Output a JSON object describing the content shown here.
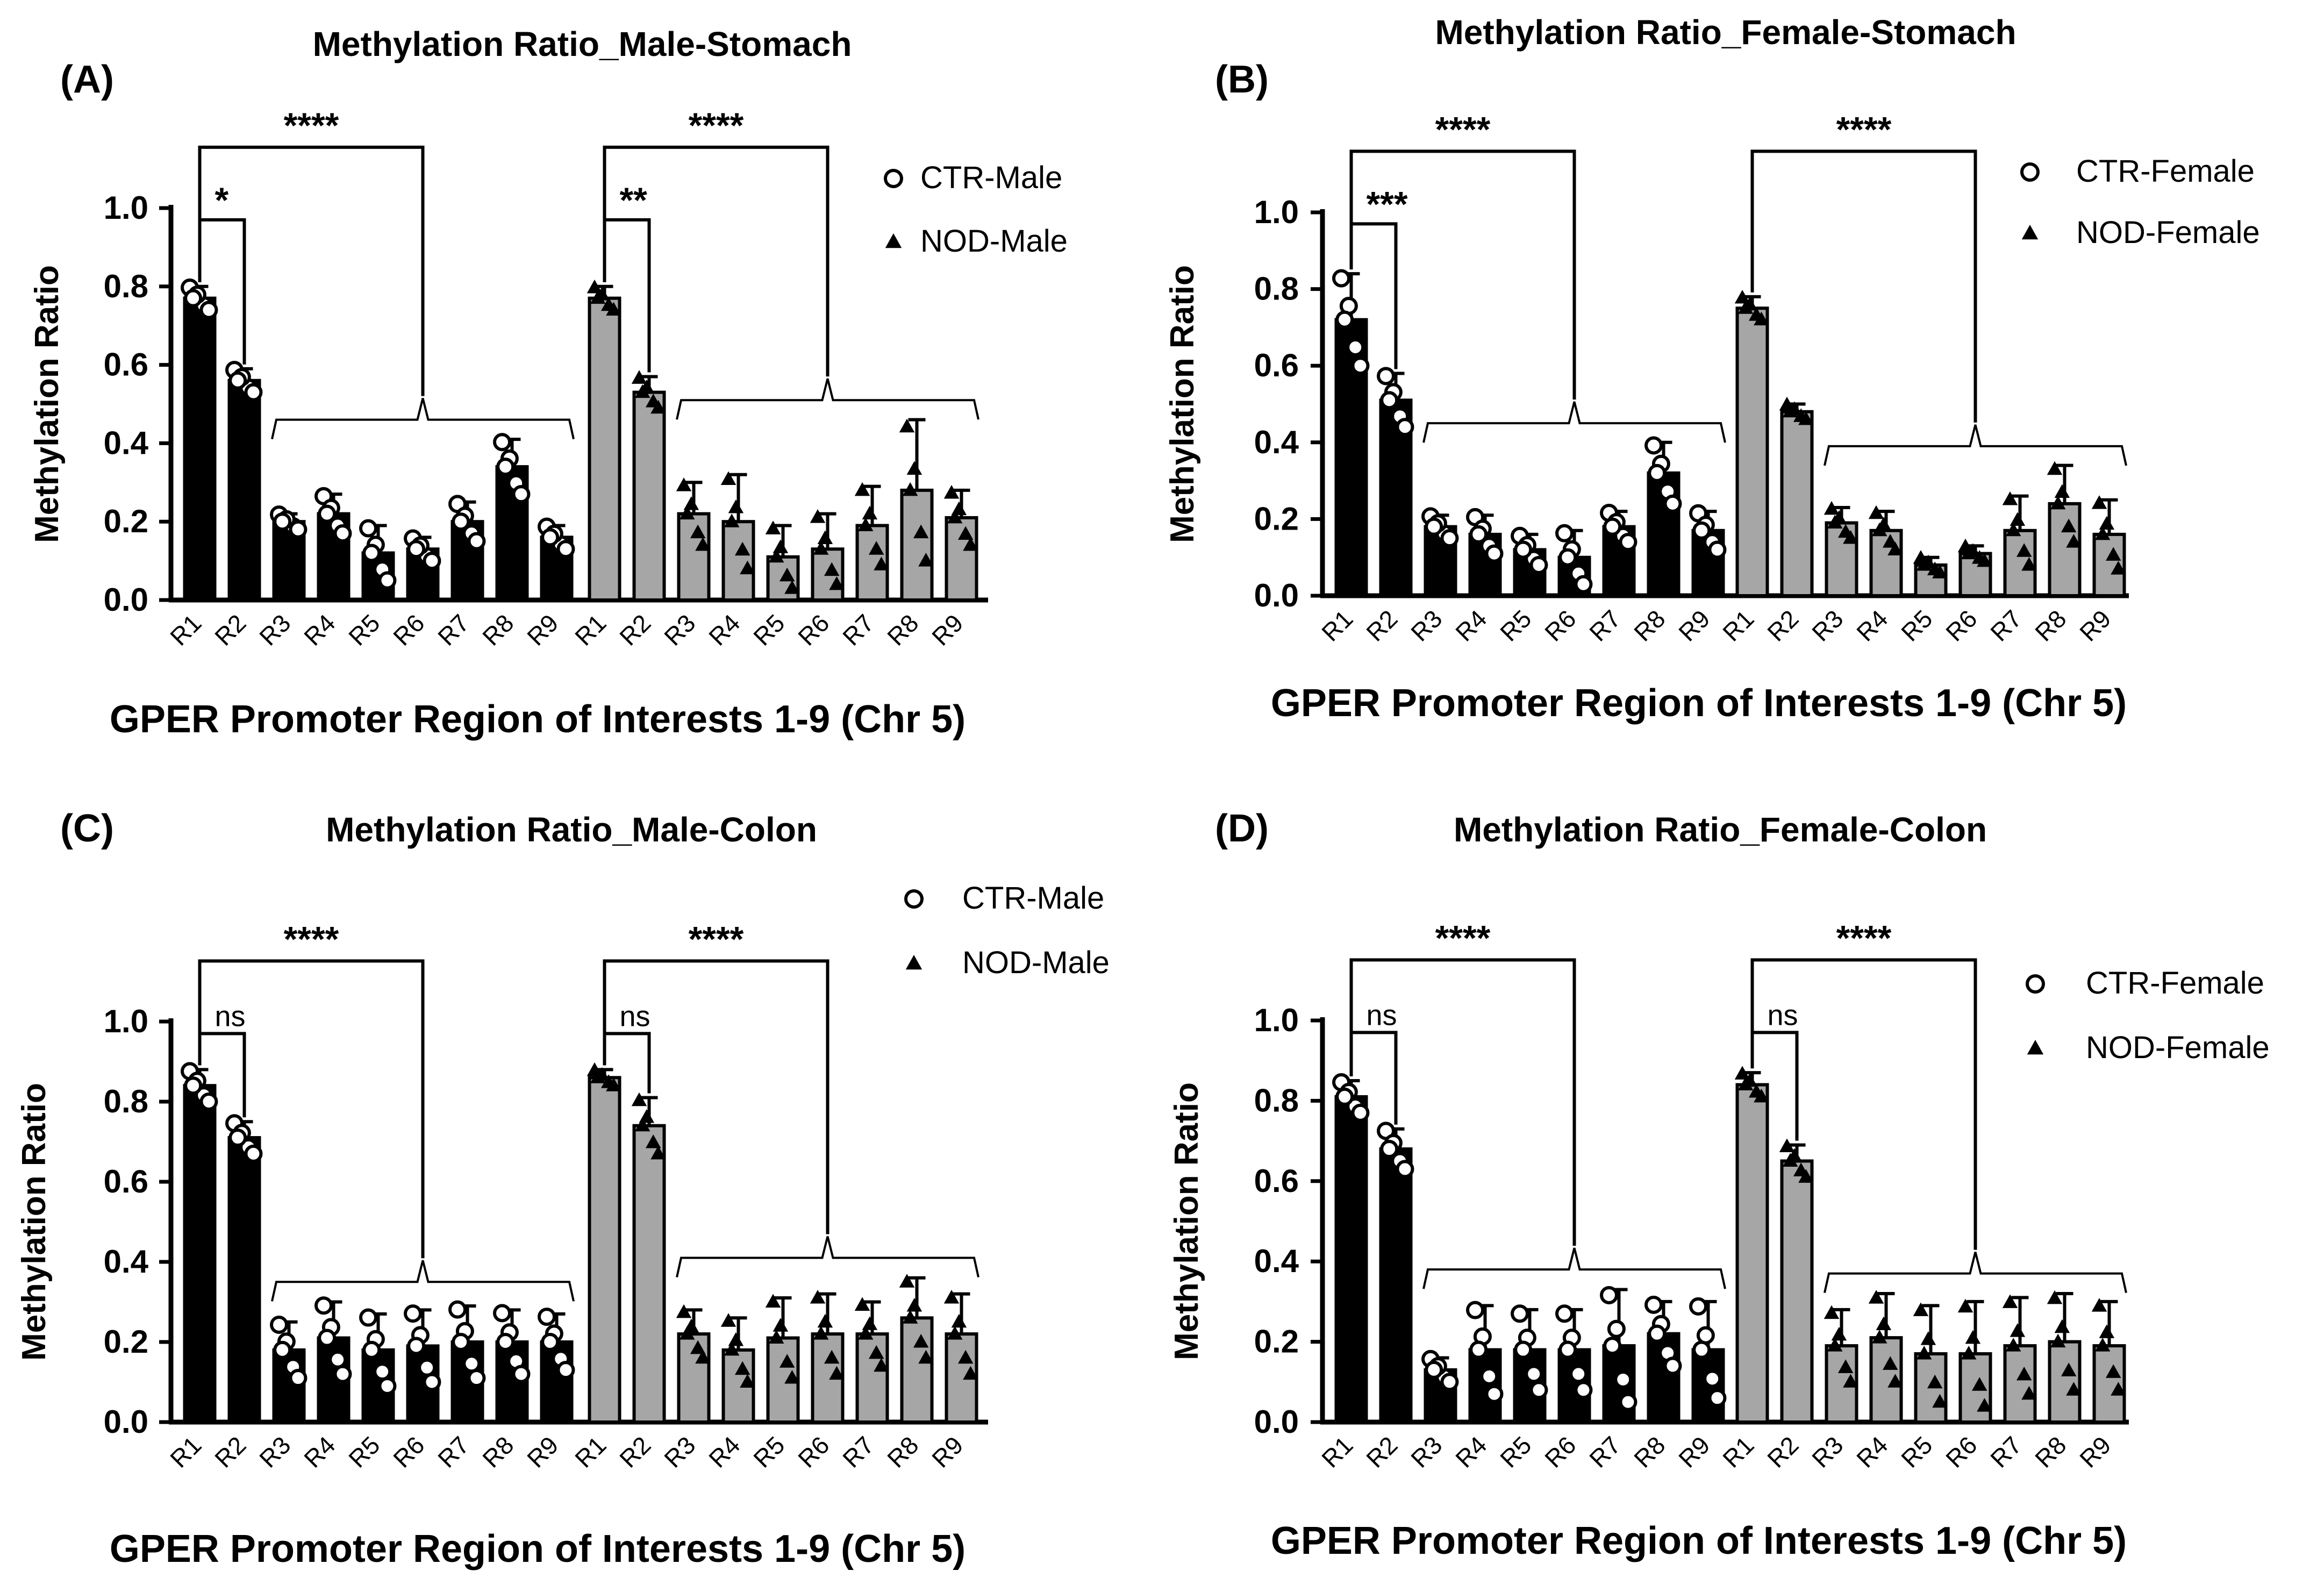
{
  "chart_data": [
    {
      "type": "bar",
      "panel_label": "(A)",
      "title": "Methylation Ratio_Male-Stomach",
      "xlabel": "GPER Promoter Region of Interests 1-9 (Chr 5)",
      "ylabel": "Methylation Ratio",
      "ylim": [
        0,
        1.0
      ],
      "yticks": [
        "0.0",
        "0.2",
        "0.4",
        "0.6",
        "0.8",
        "1.0"
      ],
      "categories": [
        "R1",
        "R2",
        "R3",
        "R4",
        "R5",
        "R6",
        "R7",
        "R8",
        "R9"
      ],
      "legend_position": "top-right",
      "series": [
        {
          "name": "CTR-Male",
          "marker": "circle",
          "color": "#000000",
          "values": [
            0.77,
            0.56,
            0.2,
            0.22,
            0.12,
            0.13,
            0.2,
            0.34,
            0.16
          ],
          "errors": [
            0.03,
            0.03,
            0.02,
            0.05,
            0.07,
            0.03,
            0.05,
            0.07,
            0.03
          ]
        },
        {
          "name": "NOD-Male",
          "marker": "triangle",
          "color": "#a6a6a6",
          "values": [
            0.77,
            0.53,
            0.22,
            0.2,
            0.11,
            0.13,
            0.19,
            0.28,
            0.21
          ],
          "errors": [
            0.03,
            0.04,
            0.08,
            0.12,
            0.08,
            0.09,
            0.1,
            0.18,
            0.07
          ]
        }
      ],
      "annotations": [
        {
          "group": "CTR-Male",
          "text": "*",
          "compare": "R1 vs R2"
        },
        {
          "group": "CTR-Male",
          "text": "****",
          "compare": "R1 vs R3-R9"
        },
        {
          "group": "NOD-Male",
          "text": "**",
          "compare": "R1 vs R2"
        },
        {
          "group": "NOD-Male",
          "text": "****",
          "compare": "R1 vs R3-R9"
        }
      ]
    },
    {
      "type": "bar",
      "panel_label": "(B)",
      "title": "Methylation Ratio_Female-Stomach",
      "xlabel": "GPER Promoter Region of Interests 1-9 (Chr 5)",
      "ylabel": "Methylation Ratio",
      "ylim": [
        0,
        1.0
      ],
      "yticks": [
        "0.0",
        "0.2",
        "0.4",
        "0.6",
        "0.8",
        "1.0"
      ],
      "categories": [
        "R1",
        "R2",
        "R3",
        "R4",
        "R5",
        "R6",
        "R7",
        "R8",
        "R9"
      ],
      "legend_position": "top-right",
      "series": [
        {
          "name": "CTR-Female",
          "marker": "circle",
          "color": "#000000",
          "values": [
            0.72,
            0.51,
            0.18,
            0.16,
            0.12,
            0.1,
            0.18,
            0.32,
            0.17
          ],
          "errors": [
            0.12,
            0.07,
            0.03,
            0.05,
            0.04,
            0.07,
            0.04,
            0.08,
            0.05
          ]
        },
        {
          "name": "NOD-Female",
          "marker": "triangle",
          "color": "#a6a6a6",
          "values": [
            0.75,
            0.48,
            0.19,
            0.17,
            0.08,
            0.11,
            0.17,
            0.24,
            0.16
          ],
          "errors": [
            0.03,
            0.02,
            0.04,
            0.05,
            0.02,
            0.02,
            0.09,
            0.1,
            0.09
          ]
        }
      ],
      "annotations": [
        {
          "group": "CTR-Female",
          "text": "***",
          "compare": "R1 vs R2"
        },
        {
          "group": "CTR-Female",
          "text": "****",
          "compare": "R1 vs R3-R9"
        },
        {
          "group": "NOD-Female",
          "text": "****",
          "compare": "R1 vs R3-R9"
        }
      ]
    },
    {
      "type": "bar",
      "panel_label": "(C)",
      "title": "Methylation Ratio_Male-Colon",
      "xlabel": "GPER Promoter Region of Interests 1-9 (Chr 5)",
      "ylabel": "Methylation Ratio",
      "ylim": [
        0,
        1.0
      ],
      "yticks": [
        "0.0",
        "0.2",
        "0.4",
        "0.6",
        "0.8",
        "1.0"
      ],
      "categories": [
        "R1",
        "R2",
        "R3",
        "R4",
        "R5",
        "R6",
        "R7",
        "R8",
        "R9"
      ],
      "legend_position": "top-right",
      "series": [
        {
          "name": "CTR-Male",
          "marker": "circle",
          "color": "#000000",
          "values": [
            0.84,
            0.71,
            0.18,
            0.21,
            0.18,
            0.19,
            0.2,
            0.2,
            0.2
          ],
          "errors": [
            0.04,
            0.04,
            0.07,
            0.09,
            0.09,
            0.09,
            0.09,
            0.08,
            0.07
          ]
        },
        {
          "name": "NOD-Male",
          "marker": "triangle",
          "color": "#a6a6a6",
          "values": [
            0.86,
            0.74,
            0.22,
            0.18,
            0.21,
            0.22,
            0.22,
            0.26,
            0.22
          ],
          "errors": [
            0.02,
            0.07,
            0.06,
            0.08,
            0.1,
            0.1,
            0.08,
            0.1,
            0.1
          ]
        }
      ],
      "annotations": [
        {
          "group": "CTR-Male",
          "text": "ns",
          "compare": "R1 vs R2"
        },
        {
          "group": "CTR-Male",
          "text": "****",
          "compare": "R1 vs R3-R9"
        },
        {
          "group": "NOD-Male",
          "text": "ns",
          "compare": "R1 vs R2"
        },
        {
          "group": "NOD-Male",
          "text": "****",
          "compare": "R1 vs R3-R9"
        }
      ]
    },
    {
      "type": "bar",
      "panel_label": "(D)",
      "title": "Methylation Ratio_Female-Colon",
      "xlabel": "GPER Promoter Region of Interests 1-9 (Chr 5)",
      "ylabel": "Methylation Ratio",
      "ylim": [
        0,
        1.0
      ],
      "yticks": [
        "0.0",
        "0.2",
        "0.4",
        "0.6",
        "0.8",
        "1.0"
      ],
      "categories": [
        "R1",
        "R2",
        "R3",
        "R4",
        "R5",
        "R6",
        "R7",
        "R8",
        "R9"
      ],
      "legend_position": "right",
      "series": [
        {
          "name": "CTR-Female",
          "marker": "circle",
          "color": "#000000",
          "values": [
            0.81,
            0.68,
            0.13,
            0.18,
            0.18,
            0.18,
            0.19,
            0.22,
            0.18
          ],
          "errors": [
            0.04,
            0.05,
            0.03,
            0.11,
            0.1,
            0.1,
            0.14,
            0.08,
            0.12
          ]
        },
        {
          "name": "NOD-Female",
          "marker": "triangle",
          "color": "#a6a6a6",
          "values": [
            0.84,
            0.65,
            0.19,
            0.21,
            0.17,
            0.17,
            0.19,
            0.2,
            0.19
          ],
          "errors": [
            0.03,
            0.04,
            0.09,
            0.11,
            0.12,
            0.13,
            0.12,
            0.12,
            0.11
          ]
        }
      ],
      "annotations": [
        {
          "group": "CTR-Female",
          "text": "ns",
          "compare": "R1 vs R2"
        },
        {
          "group": "CTR-Female",
          "text": "****",
          "compare": "R1 vs R3-R9"
        },
        {
          "group": "NOD-Female",
          "text": "ns",
          "compare": "R1 vs R2"
        },
        {
          "group": "NOD-Female",
          "text": "****",
          "compare": "R1 vs R3-R9"
        }
      ]
    }
  ]
}
